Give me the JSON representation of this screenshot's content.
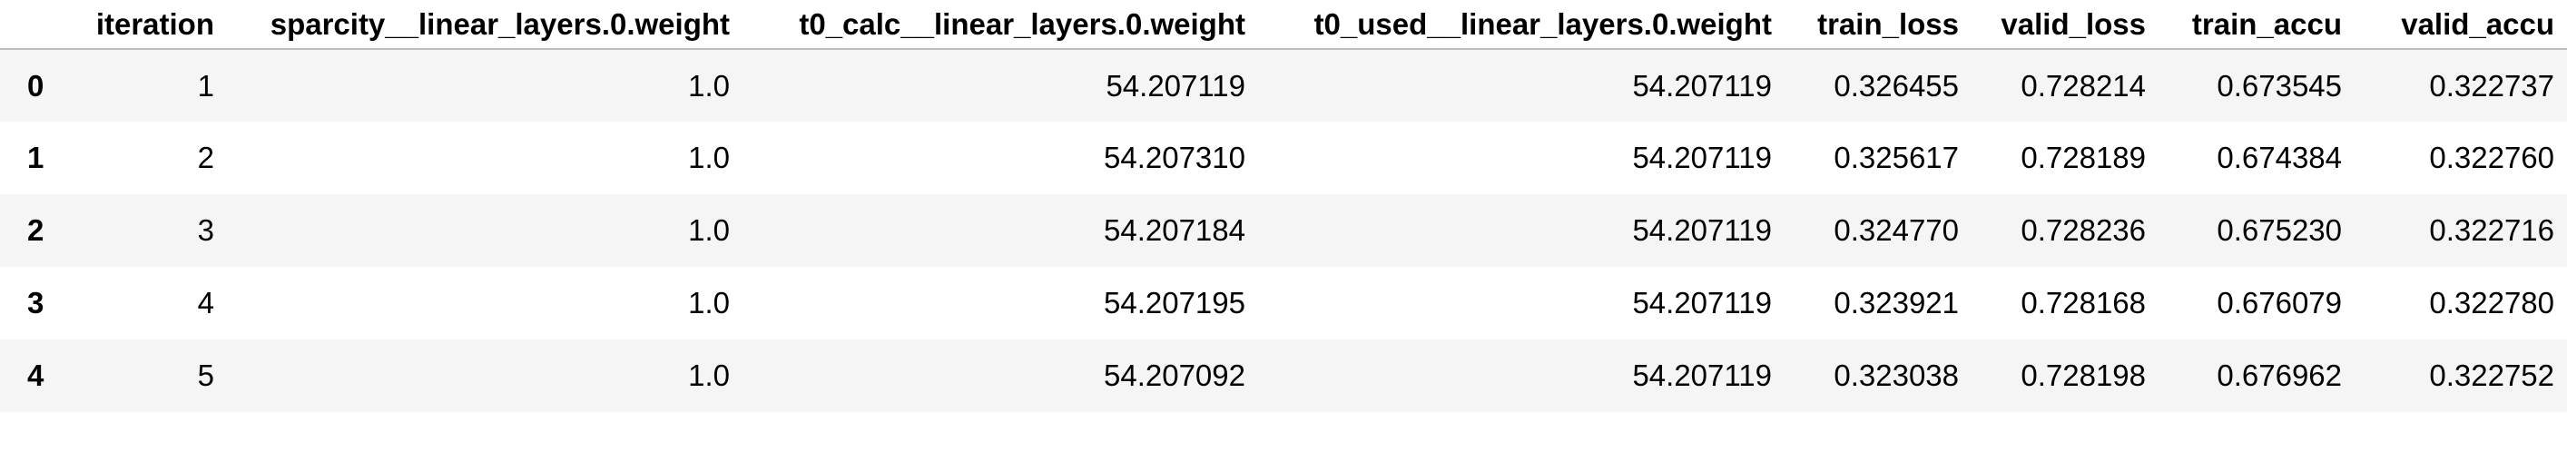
{
  "table": {
    "columns": [
      "iteration",
      "sparcity__linear_layers.0.weight",
      "t0_calc__linear_layers.0.weight",
      "t0_used__linear_layers.0.weight",
      "train_loss",
      "valid_loss",
      "train_accu",
      "valid_accu"
    ],
    "rows": [
      {
        "index": "0",
        "cells": [
          "1",
          "1.0",
          "54.207119",
          "54.207119",
          "0.326455",
          "0.728214",
          "0.673545",
          "0.322737"
        ]
      },
      {
        "index": "1",
        "cells": [
          "2",
          "1.0",
          "54.207310",
          "54.207119",
          "0.325617",
          "0.728189",
          "0.674384",
          "0.322760"
        ]
      },
      {
        "index": "2",
        "cells": [
          "3",
          "1.0",
          "54.207184",
          "54.207119",
          "0.324770",
          "0.728236",
          "0.675230",
          "0.322716"
        ]
      },
      {
        "index": "3",
        "cells": [
          "4",
          "1.0",
          "54.207195",
          "54.207119",
          "0.323921",
          "0.728168",
          "0.676079",
          "0.322780"
        ]
      },
      {
        "index": "4",
        "cells": [
          "5",
          "1.0",
          "54.207092",
          "54.207119",
          "0.323038",
          "0.728198",
          "0.676962",
          "0.322752"
        ]
      }
    ]
  }
}
